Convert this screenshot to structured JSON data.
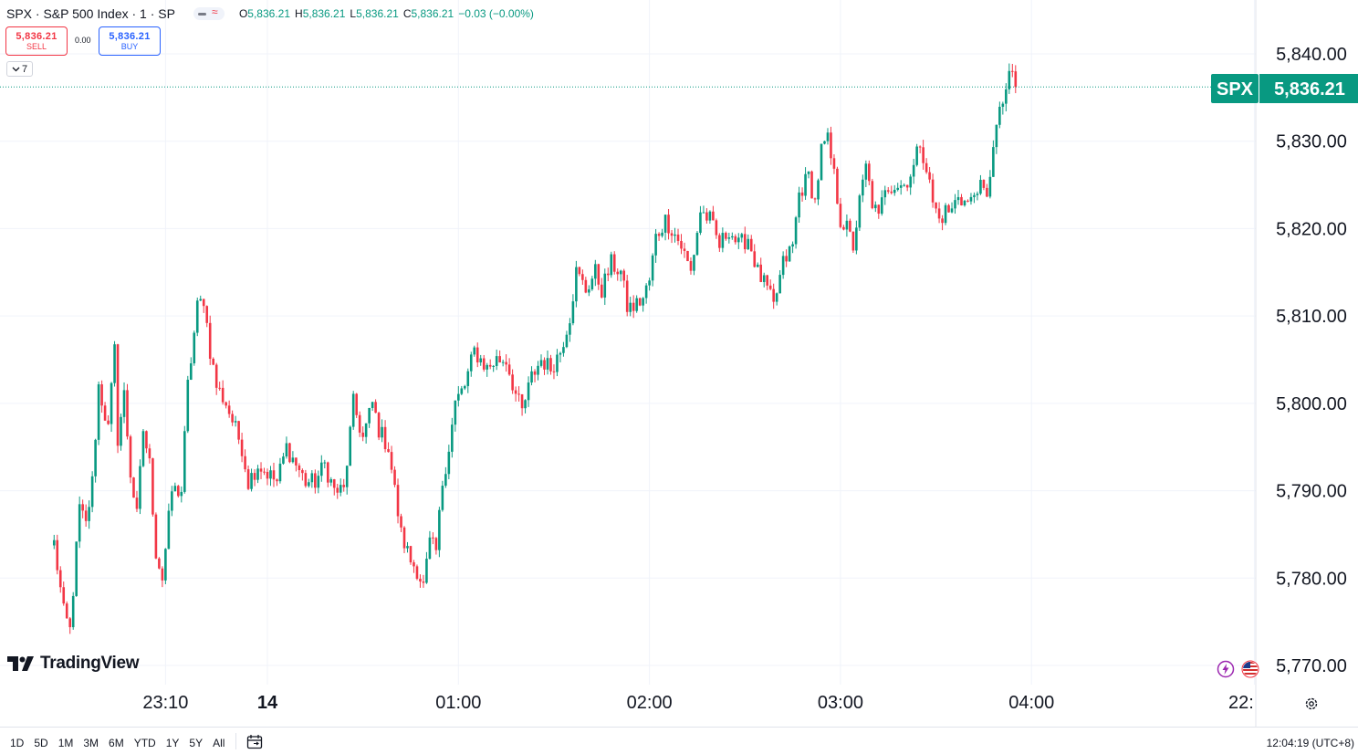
{
  "legend": {
    "symbol": "SPX · S&P 500 Index · 1 · SP",
    "open_label": "O",
    "open": "5,836.21",
    "high_label": "H",
    "high": "5,836.21",
    "low_label": "L",
    "low": "5,836.21",
    "close_label": "C",
    "close": "5,836.21",
    "change": "−0.03 (−0.00%)"
  },
  "trade": {
    "sell_price": "5,836.21",
    "sell_label": "SELL",
    "buy_price": "5,836.21",
    "buy_label": "BUY",
    "spread": "0.00"
  },
  "indicators_toggle": {
    "count": "7"
  },
  "brand": {
    "name": "TradingView"
  },
  "bottom_bar": {
    "ranges": [
      "1D",
      "5D",
      "1M",
      "3M",
      "6M",
      "YTD",
      "1Y",
      "5Y",
      "All"
    ],
    "clock": "12:04:19 (UTC+8)"
  },
  "icons": [
    "chevron-down-icon",
    "calendar-icon",
    "settings-icon",
    "lightning-event-icon",
    "us-flag-icon",
    "tradingview-logo-icon"
  ],
  "colors": {
    "up": "#089981",
    "down": "#f23645",
    "grid": "#f0f3fa",
    "text": "#131722"
  },
  "chart_data": {
    "type": "candlestick",
    "title": "SPX · S&P 500 Index · 1 · SP",
    "symbol_label": "SPX",
    "last_price_label": "5,836.21",
    "last_price": 5836.21,
    "y_ticks": [
      "5,840.00",
      "5,830.00",
      "5,820.00",
      "5,810.00",
      "5,800.00",
      "5,790.00",
      "5,780.00",
      "5,770.00"
    ],
    "y_tick_values": [
      5840,
      5830,
      5820,
      5810,
      5800,
      5790,
      5780,
      5770
    ],
    "ylim": [
      5767.0,
      5843.0
    ],
    "x_ticks": [
      "23:10",
      "14",
      "01:00",
      "02:00",
      "03:00",
      "04:00",
      "22:"
    ],
    "x_tick_minutes": [
      -32,
      0,
      60,
      120,
      180,
      240,
      310
    ],
    "xlim": [
      -67,
      318
    ],
    "grid": true,
    "candle_interval": "1 minute",
    "anchors": [
      [
        -67,
        5784
      ],
      [
        -64,
        5776
      ],
      [
        -62,
        5774
      ],
      [
        -59,
        5788
      ],
      [
        -57,
        5786
      ],
      [
        -55,
        5791
      ],
      [
        -53,
        5802
      ],
      [
        -50,
        5797
      ],
      [
        -48,
        5806
      ],
      [
        -47,
        5796
      ],
      [
        -45,
        5801
      ],
      [
        -43,
        5792
      ],
      [
        -41,
        5787
      ],
      [
        -39,
        5797
      ],
      [
        -37,
        5793
      ],
      [
        -35,
        5783
      ],
      [
        -33,
        5780
      ],
      [
        -30,
        5790
      ],
      [
        -27,
        5790
      ],
      [
        -25,
        5802
      ],
      [
        -22,
        5811
      ],
      [
        -20,
        5812
      ],
      [
        -18,
        5806
      ],
      [
        -16,
        5802
      ],
      [
        -13,
        5800
      ],
      [
        -10,
        5797
      ],
      [
        -8,
        5795
      ],
      [
        -6,
        5791
      ],
      [
        -3,
        5793
      ],
      [
        0,
        5792
      ],
      [
        3,
        5791
      ],
      [
        6,
        5795
      ],
      [
        9,
        5793
      ],
      [
        12,
        5791
      ],
      [
        15,
        5791
      ],
      [
        18,
        5793
      ],
      [
        21,
        5790
      ],
      [
        24,
        5790
      ],
      [
        27,
        5800
      ],
      [
        30,
        5796
      ],
      [
        33,
        5800
      ],
      [
        35,
        5797
      ],
      [
        38,
        5795
      ],
      [
        40,
        5790
      ],
      [
        42,
        5785
      ],
      [
        45,
        5782
      ],
      [
        47,
        5781
      ],
      [
        49,
        5779
      ],
      [
        51,
        5784
      ],
      [
        53,
        5783
      ],
      [
        55,
        5791
      ],
      [
        57,
        5795
      ],
      [
        59,
        5800
      ],
      [
        62,
        5802
      ],
      [
        65,
        5806
      ],
      [
        67,
        5805
      ],
      [
        69,
        5804
      ],
      [
        72,
        5805
      ],
      [
        75,
        5805
      ],
      [
        78,
        5801
      ],
      [
        80,
        5799
      ],
      [
        83,
        5803
      ],
      [
        86,
        5805
      ],
      [
        89,
        5804
      ],
      [
        92,
        5806
      ],
      [
        95,
        5810
      ],
      [
        97,
        5815
      ],
      [
        100,
        5813
      ],
      [
        103,
        5815
      ],
      [
        105,
        5813
      ],
      [
        108,
        5816
      ],
      [
        111,
        5815
      ],
      [
        113,
        5811
      ],
      [
        115,
        5811
      ],
      [
        118,
        5812
      ],
      [
        120,
        5814
      ],
      [
        122,
        5819
      ],
      [
        125,
        5821
      ],
      [
        127,
        5820
      ],
      [
        130,
        5818
      ],
      [
        133,
        5815
      ],
      [
        136,
        5822
      ],
      [
        139,
        5821
      ],
      [
        142,
        5818
      ],
      [
        145,
        5820
      ],
      [
        148,
        5818
      ],
      [
        151,
        5819
      ],
      [
        154,
        5815
      ],
      [
        157,
        5813
      ],
      [
        159,
        5811
      ],
      [
        162,
        5816
      ],
      [
        165,
        5818
      ],
      [
        167,
        5824
      ],
      [
        170,
        5826
      ],
      [
        172,
        5823
      ],
      [
        174,
        5829
      ],
      [
        176,
        5830
      ],
      [
        178,
        5826
      ],
      [
        180,
        5821
      ],
      [
        182,
        5820
      ],
      [
        184,
        5818
      ],
      [
        186,
        5823
      ],
      [
        188,
        5827
      ],
      [
        190,
        5823
      ],
      [
        192,
        5821
      ],
      [
        194,
        5825
      ],
      [
        197,
        5825
      ],
      [
        200,
        5825
      ],
      [
        203,
        5827
      ],
      [
        205,
        5830
      ],
      [
        207,
        5827
      ],
      [
        209,
        5823
      ],
      [
        211,
        5821
      ],
      [
        213,
        5822
      ],
      [
        215,
        5822
      ],
      [
        217,
        5824
      ],
      [
        219,
        5823
      ],
      [
        221,
        5823
      ],
      [
        223,
        5825
      ],
      [
        225,
        5824
      ],
      [
        226,
        5823
      ],
      [
        228,
        5830
      ],
      [
        230,
        5833
      ],
      [
        232,
        5836
      ],
      [
        234,
        5838
      ],
      [
        235,
        5836.21
      ]
    ]
  }
}
